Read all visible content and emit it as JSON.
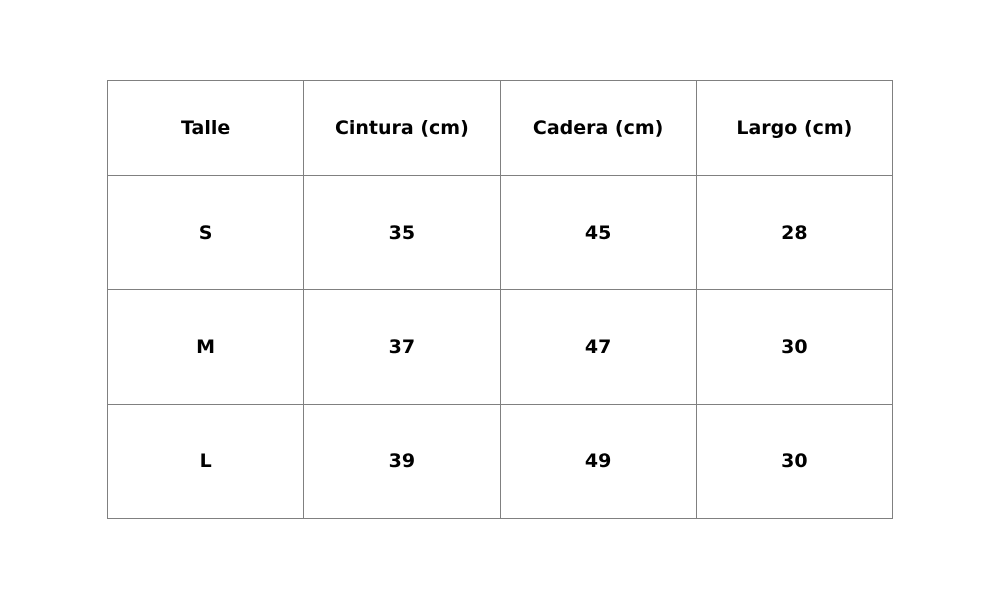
{
  "table": {
    "headers": [
      "Talle",
      "Cintura (cm)",
      "Cadera (cm)",
      "Largo (cm)"
    ],
    "rows": [
      [
        "S",
        "35",
        "45",
        "28"
      ],
      [
        "M",
        "37",
        "47",
        "30"
      ],
      [
        "L",
        "39",
        "49",
        "30"
      ]
    ],
    "border_color": "#808080"
  }
}
